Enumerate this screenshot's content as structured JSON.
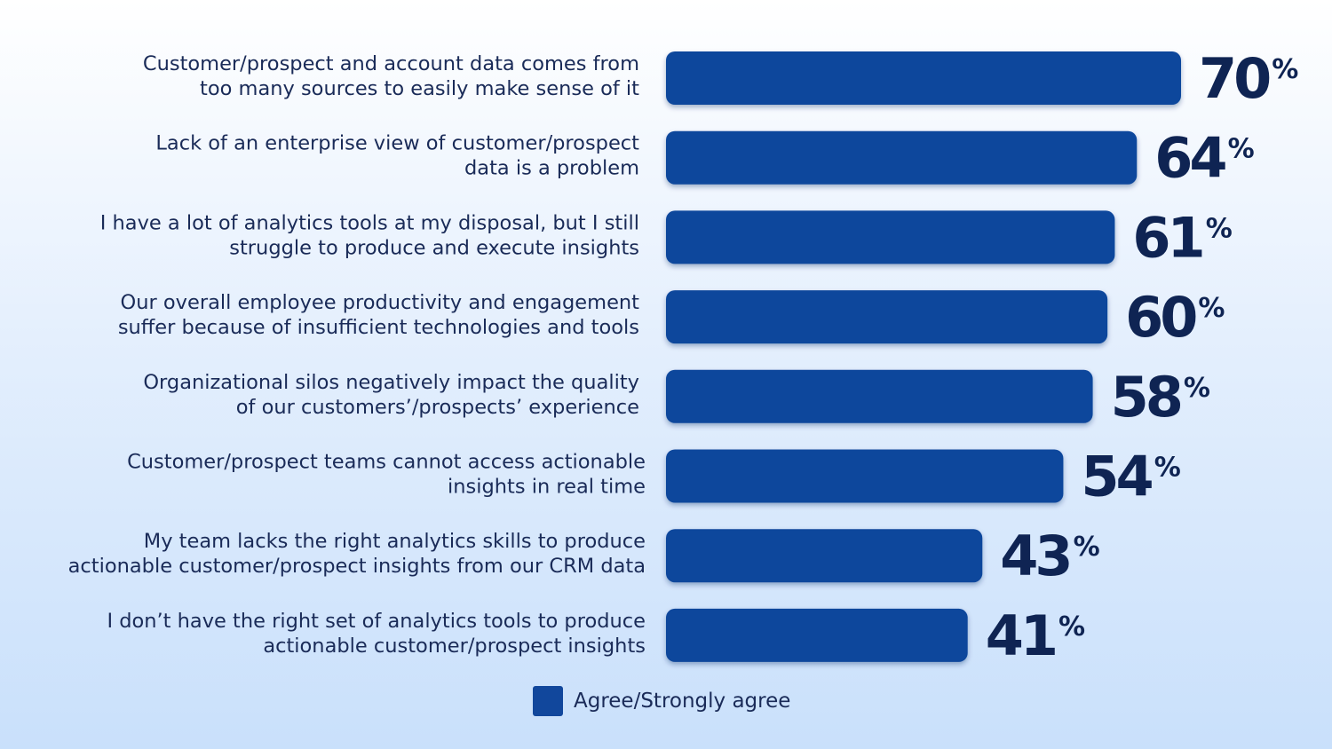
{
  "chart_data": {
    "type": "bar",
    "orientation": "horizontal",
    "categories": [
      [
        "Customer/prospect and account data comes from",
        "too many sources to easily make sense of it"
      ],
      [
        "Lack of an enterprise view of customer/prospect",
        "data is a problem"
      ],
      [
        "I have a lot of analytics tools at my disposal, but I still",
        "struggle to produce and execute insights"
      ],
      [
        "Our overall employee productivity and engagement",
        "suffer because of insufficient technologies and tools"
      ],
      [
        "Organizational silos negatively impact the quality",
        "of our customers’/prospects’ experience"
      ],
      [
        "Customer/prospect teams cannot access actionable",
        "insights in real time"
      ],
      [
        "My team lacks the right analytics skills to produce",
        "actionable customer/prospect insights from our CRM data"
      ],
      [
        "I don’t have the right set of analytics tools to produce",
        "actionable customer/prospect insights"
      ]
    ],
    "series": [
      {
        "name": "Agree/Strongly agree",
        "values": [
          70,
          64,
          61,
          60,
          58,
          54,
          43,
          41
        ],
        "color": "#11479c"
      }
    ],
    "value_suffix": "%",
    "xlim": [
      0,
      100
    ],
    "grid": false,
    "legend": "bottom-center"
  },
  "legend": {
    "label": "Agree/Strongly agree",
    "color": "#11479c"
  }
}
